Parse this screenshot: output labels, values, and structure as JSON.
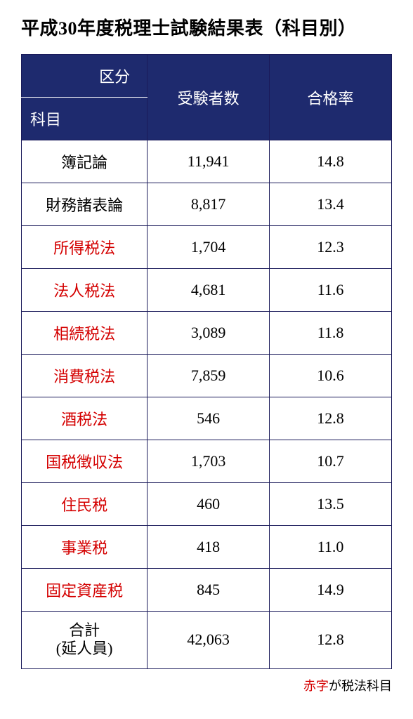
{
  "title": "平成30年度税理士試験結果表（科目別）",
  "headers": {
    "kubun": "区分",
    "kamoku": "科目",
    "count": "受験者数",
    "rate": "合格率"
  },
  "rows": [
    {
      "subject": "簿記論",
      "count": "11,941",
      "rate": "14.8",
      "red": false
    },
    {
      "subject": "財務諸表論",
      "count": "8,817",
      "rate": "13.4",
      "red": false
    },
    {
      "subject": "所得税法",
      "count": "1,704",
      "rate": "12.3",
      "red": true
    },
    {
      "subject": "法人税法",
      "count": "4,681",
      "rate": "11.6",
      "red": true
    },
    {
      "subject": "相続税法",
      "count": "3,089",
      "rate": "11.8",
      "red": true
    },
    {
      "subject": "消費税法",
      "count": "7,859",
      "rate": "10.6",
      "red": true
    },
    {
      "subject": "酒税法",
      "count": "546",
      "rate": "12.8",
      "red": true
    },
    {
      "subject": "国税徴収法",
      "count": "1,703",
      "rate": "10.7",
      "red": true
    },
    {
      "subject": "住民税",
      "count": "460",
      "rate": "13.5",
      "red": true
    },
    {
      "subject": "事業税",
      "count": "418",
      "rate": "11.0",
      "red": true
    },
    {
      "subject": "固定資産税",
      "count": "845",
      "rate": "14.9",
      "red": true
    }
  ],
  "total": {
    "label_line1": "合計",
    "label_line2": "(延人員)",
    "count": "42,063",
    "rate": "12.8"
  },
  "footnote": {
    "red_part": "赤字",
    "rest": "が税法科目"
  },
  "colors": {
    "header_bg": "#1e2a6e",
    "border": "#1a1a5a",
    "red": "#d40000"
  }
}
